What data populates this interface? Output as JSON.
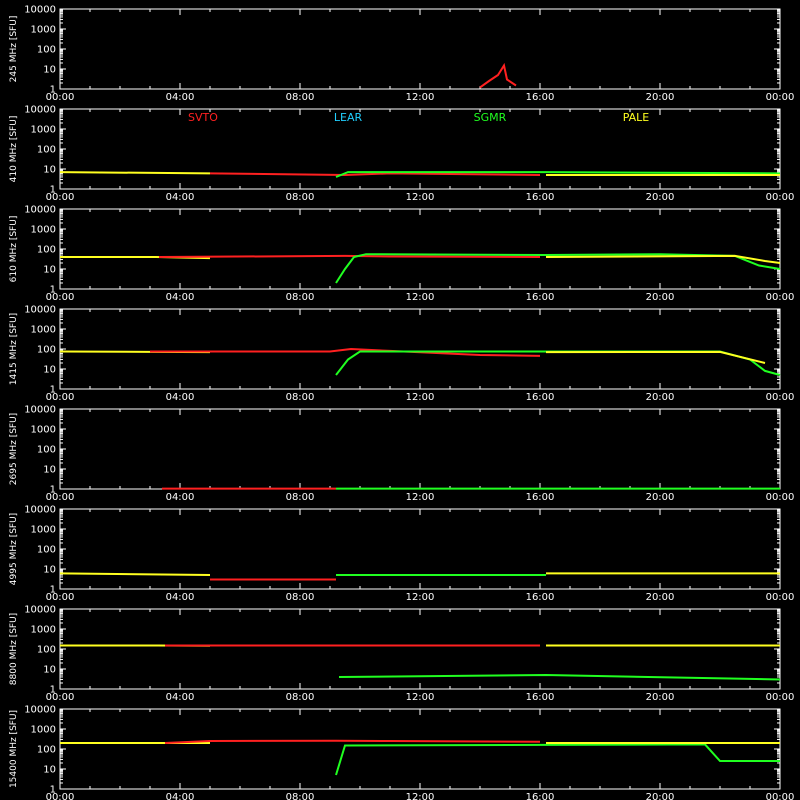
{
  "chart_data": {
    "type": "line",
    "x_tick_labels": [
      "00:00",
      "04:00",
      "08:00",
      "12:00",
      "16:00",
      "20:00",
      "00:00"
    ],
    "y_tick_labels": [
      "1",
      "10",
      "100",
      "1000",
      "10000"
    ],
    "y_scale": "log",
    "ylim": [
      1,
      10000
    ],
    "x_range_hours": [
      0,
      24
    ],
    "legend_placement": "top of second panel",
    "stations": [
      {
        "name": "SVTO",
        "color": "#ff2020"
      },
      {
        "name": "LEAR",
        "color": "#20d0ff"
      },
      {
        "name": "SGMR",
        "color": "#20ff20"
      },
      {
        "name": "PALE",
        "color": "#ffff20"
      }
    ],
    "panels": [
      {
        "ylabel": "245 MHz [SFU]",
        "series": [
          {
            "station": "SVTO",
            "points": [
              [
                14.0,
                1.2
              ],
              [
                14.3,
                2.5
              ],
              [
                14.6,
                5
              ],
              [
                14.8,
                15
              ],
              [
                14.9,
                3
              ],
              [
                15.2,
                1.5
              ]
            ]
          }
        ]
      },
      {
        "ylabel": "410 MHz [SFU]",
        "series": [
          {
            "station": "PALE",
            "points": [
              [
                0,
                7
              ],
              [
                5,
                6
              ],
              [
                5,
                6
              ]
            ]
          },
          {
            "station": "SVTO",
            "points": [
              [
                5,
                6
              ],
              [
                9.5,
                5
              ],
              [
                11,
                6
              ],
              [
                16,
                5
              ]
            ]
          },
          {
            "station": "SGMR",
            "points": [
              [
                9.2,
                4
              ],
              [
                9.6,
                7
              ],
              [
                16.2,
                7
              ],
              [
                24,
                6
              ]
            ]
          },
          {
            "station": "PALE",
            "points": [
              [
                16.2,
                5
              ],
              [
                24,
                5
              ]
            ]
          }
        ]
      },
      {
        "ylabel": "610 MHz [SFU]",
        "series": [
          {
            "station": "PALE",
            "points": [
              [
                0,
                40
              ],
              [
                3.2,
                40
              ],
              [
                5,
                35
              ]
            ]
          },
          {
            "station": "SVTO",
            "points": [
              [
                3.3,
                40
              ],
              [
                9.5,
                45
              ],
              [
                11,
                42
              ],
              [
                16,
                40
              ]
            ]
          },
          {
            "station": "SGMR",
            "points": [
              [
                9.2,
                2
              ],
              [
                9.5,
                10
              ],
              [
                9.8,
                40
              ],
              [
                10.2,
                55
              ],
              [
                16.2,
                50
              ],
              [
                20,
                55
              ],
              [
                22.5,
                45
              ],
              [
                23.3,
                15
              ],
              [
                24,
                10
              ]
            ]
          },
          {
            "station": "PALE",
            "points": [
              [
                16.2,
                40
              ],
              [
                22.5,
                45
              ],
              [
                23.5,
                25
              ],
              [
                24,
                20
              ]
            ]
          }
        ]
      },
      {
        "ylabel": "1415 MHz [SFU]",
        "series": [
          {
            "station": "PALE",
            "points": [
              [
                0,
                75
              ],
              [
                3,
                72
              ],
              [
                5,
                70
              ]
            ]
          },
          {
            "station": "SVTO",
            "points": [
              [
                3,
                75
              ],
              [
                9,
                75
              ],
              [
                9.7,
                100
              ],
              [
                11,
                80
              ],
              [
                14,
                50
              ],
              [
                16,
                45
              ]
            ]
          },
          {
            "station": "SGMR",
            "points": [
              [
                9.2,
                5
              ],
              [
                9.6,
                30
              ],
              [
                10,
                75
              ],
              [
                16.2,
                75
              ],
              [
                22,
                75
              ],
              [
                23,
                30
              ],
              [
                23.5,
                8
              ],
              [
                24,
                5
              ]
            ]
          },
          {
            "station": "PALE",
            "points": [
              [
                16.2,
                70
              ],
              [
                22,
                72
              ],
              [
                23.5,
                20
              ]
            ]
          }
        ]
      },
      {
        "ylabel": "2695 MHz [SFU]",
        "series": [
          {
            "station": "SVTO",
            "points": [
              [
                3.4,
                1.05
              ],
              [
                9.2,
                1.05
              ]
            ]
          },
          {
            "station": "SGMR",
            "points": [
              [
                9.2,
                1.05
              ],
              [
                24,
                1.05
              ]
            ]
          }
        ]
      },
      {
        "ylabel": "4995 MHz [SFU]",
        "series": [
          {
            "station": "PALE",
            "points": [
              [
                0,
                6
              ],
              [
                5,
                5
              ]
            ]
          },
          {
            "station": "SVTO",
            "points": [
              [
                5,
                3
              ],
              [
                9.2,
                3
              ]
            ]
          },
          {
            "station": "SGMR",
            "points": [
              [
                9.2,
                5
              ],
              [
                16.2,
                5
              ]
            ]
          },
          {
            "station": "PALE",
            "points": [
              [
                16.2,
                6
              ],
              [
                24,
                6
              ]
            ]
          }
        ]
      },
      {
        "ylabel": "8800 MHz [SFU]",
        "series": [
          {
            "station": "PALE",
            "points": [
              [
                0,
                150
              ],
              [
                3.2,
                150
              ],
              [
                5,
                145
              ]
            ]
          },
          {
            "station": "SVTO",
            "points": [
              [
                3.5,
                150
              ],
              [
                9.2,
                150
              ],
              [
                16,
                150
              ]
            ]
          },
          {
            "station": "SGMR",
            "points": [
              [
                9.3,
                4
              ],
              [
                16.2,
                5
              ],
              [
                24,
                3
              ]
            ]
          },
          {
            "station": "PALE",
            "points": [
              [
                16.2,
                150
              ],
              [
                22.5,
                150
              ],
              [
                24,
                150
              ]
            ]
          }
        ]
      },
      {
        "ylabel": "15400 MHz [SFU]",
        "series": [
          {
            "station": "PALE",
            "points": [
              [
                0,
                200
              ],
              [
                3.2,
                200
              ],
              [
                5,
                200
              ]
            ]
          },
          {
            "station": "SVTO",
            "points": [
              [
                3.5,
                200
              ],
              [
                5,
                250
              ],
              [
                9.2,
                260
              ],
              [
                11,
                250
              ],
              [
                16,
                230
              ]
            ]
          },
          {
            "station": "SGMR",
            "points": [
              [
                9.2,
                5
              ],
              [
                9.5,
                150
              ],
              [
                16.2,
                160
              ],
              [
                21.5,
                170
              ],
              [
                22,
                25
              ],
              [
                24,
                25
              ]
            ]
          },
          {
            "station": "PALE",
            "points": [
              [
                16.2,
                200
              ],
              [
                23.5,
                200
              ],
              [
                24,
                200
              ]
            ]
          }
        ]
      }
    ]
  }
}
